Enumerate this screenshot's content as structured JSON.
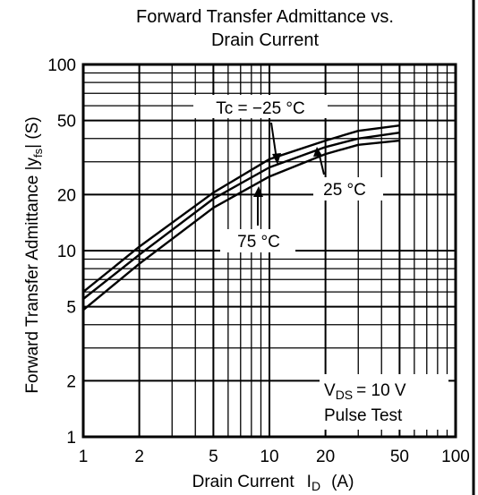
{
  "chart_data": {
    "type": "line",
    "title_line1": "Forward Transfer Admittance vs.",
    "title_line2": "Drain Current",
    "xlabel": "Drain Current",
    "xlabel_symbol": "I",
    "xlabel_sub": "D",
    "xlabel_unit": "(A)",
    "ylabel": "Forward Transfer Admittance |y",
    "ylabel_sub": "fs",
    "ylabel_tail": "| (S)",
    "x_scale": "log",
    "y_scale": "log",
    "xlim": [
      1,
      100
    ],
    "ylim": [
      1,
      100
    ],
    "x_ticks": [
      1,
      2,
      5,
      10,
      20,
      50,
      100
    ],
    "x_tick_labels": [
      "1",
      "2",
      "5",
      "10",
      "20",
      "50",
      "100"
    ],
    "y_ticks": [
      1,
      2,
      5,
      10,
      20,
      50,
      100
    ],
    "y_tick_labels": [
      "1",
      "2",
      "5",
      "10",
      "20",
      "50",
      "100"
    ],
    "grid": true,
    "series": [
      {
        "name": "Tc = −25 °C",
        "x": [
          1,
          2,
          5,
          10,
          20,
          30,
          50
        ],
        "y": [
          6.0,
          10.5,
          20.5,
          31,
          39,
          44,
          47
        ]
      },
      {
        "name": "25 °C",
        "x": [
          1,
          2,
          5,
          10,
          20,
          30,
          50
        ],
        "y": [
          5.5,
          9.5,
          19,
          28,
          36,
          40,
          43
        ]
      },
      {
        "name": "75 °C",
        "x": [
          1,
          2,
          5,
          10,
          20,
          30,
          50
        ],
        "y": [
          4.8,
          8.5,
          17,
          25,
          33,
          37,
          39
        ]
      }
    ],
    "annotations": {
      "label_minus25": "Tc = −25 °C",
      "label_25": "25 °C",
      "label_75": "75 °C",
      "condition_line1": "V",
      "condition_sub": "DS",
      "condition_tail": "= 10 V",
      "condition_line2": "Pulse Test"
    }
  }
}
